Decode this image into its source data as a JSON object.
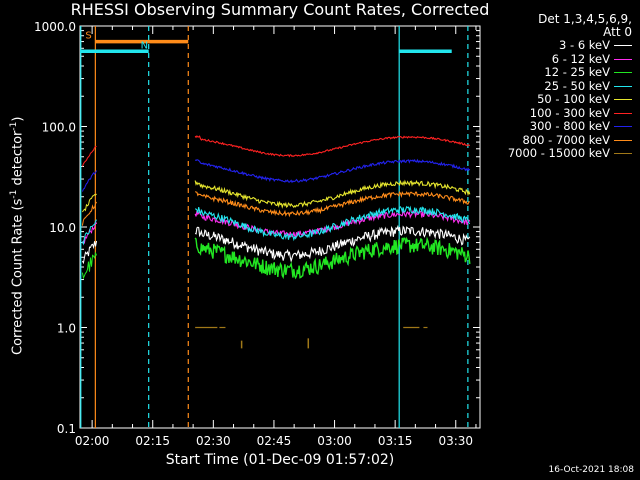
{
  "chart_data": {
    "type": "line",
    "title": "RHESSI Observing Summary Count Rates, Corrected",
    "xlabel": "Start Time (01-Dec-09 01:57:02)",
    "ylabel": "Corrected Count Rate (s",
    "ylabel_exp": "-1",
    "ylabel_rest": " detector",
    "ylabel_exp2": "-1",
    "ylabel_close": ")",
    "ylog": true,
    "ylim": [
      0.1,
      1000
    ],
    "xlim_minutes": [
      -3,
      96
    ],
    "xticks": [
      "02:00",
      "02:15",
      "02:30",
      "02:45",
      "03:00",
      "03:15",
      "03:30"
    ],
    "xtick_minutes": [
      0,
      15,
      30,
      45,
      60,
      75,
      90
    ],
    "yticks": [
      "0.1",
      "1.0",
      "10.0",
      "100.0",
      "1000.0"
    ],
    "ytick_values": [
      0.1,
      1,
      10,
      100,
      1000
    ],
    "detector_info": [
      "Det 1,3,4,5,6,9,",
      "Att 0"
    ],
    "series": [
      {
        "name": "3 - 6 keV",
        "color": "#ffffff",
        "base": 7.2,
        "amp": 0.55,
        "noise": 0.12
      },
      {
        "name": "6 - 12 keV",
        "color": "#ff2ef0",
        "base": 11.0,
        "amp": 0.45,
        "noise": 0.07
      },
      {
        "name": "12 - 25 keV",
        "color": "#22e622",
        "base": 5.2,
        "amp": 0.55,
        "noise": 0.18
      },
      {
        "name": "25 - 50 keV",
        "color": "#22e6ee",
        "base": 11.5,
        "amp": 0.6,
        "noise": 0.08
      },
      {
        "name": "50 - 100 keV",
        "color": "#e6e62e",
        "base": 22.0,
        "amp": 0.5,
        "noise": 0.05
      },
      {
        "name": "100 - 300 keV",
        "color": "#ff2222",
        "base": 65.0,
        "amp": 0.42,
        "noise": 0.02
      },
      {
        "name": "300 - 800 keV",
        "color": "#2222ee",
        "base": 37.0,
        "amp": 0.45,
        "noise": 0.03
      },
      {
        "name": "800 - 7000 keV",
        "color": "#ff8c1a",
        "base": 17.5,
        "amp": 0.45,
        "noise": 0.05
      },
      {
        "name": "7000 - 15000 keV",
        "color": "#a07818",
        "base": 1.0,
        "amp": 0.0,
        "noise": 0.0
      }
    ],
    "data_start_minute": 25.5,
    "data_end_minute": 93.5,
    "pre_gap_end_minute": 1.2,
    "flags": [
      {
        "label": "S",
        "color": "#ff8c1a",
        "start": 0.8,
        "end": 23.8,
        "value": 700
      },
      {
        "label": "N",
        "color": "#22e6ee",
        "start": -3,
        "end": 14,
        "value": 560
      },
      {
        "label": "",
        "color": "#22e6ee",
        "start": 76,
        "end": 89,
        "value": 560
      }
    ],
    "vlines": [
      {
        "minute": -2.8,
        "color": "#22e6ee",
        "style": "solid"
      },
      {
        "minute": 0.8,
        "color": "#ff8c1a",
        "style": "solid"
      },
      {
        "minute": 14.0,
        "color": "#22e6ee",
        "style": "dashed"
      },
      {
        "minute": 23.8,
        "color": "#ff8c1a",
        "style": "dashed"
      },
      {
        "minute": 76.0,
        "color": "#22e6ee",
        "style": "solid"
      },
      {
        "minute": 93.0,
        "color": "#22e6ee",
        "style": "dashed"
      }
    ],
    "timestamp": "16-Oct-2021 18:08"
  }
}
